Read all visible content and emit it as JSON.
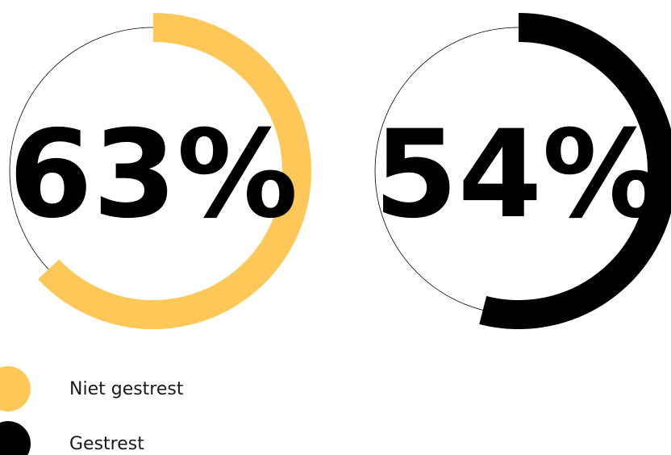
{
  "chart_data": {
    "type": "pie",
    "charts": [
      {
        "value": 63,
        "label": "63%",
        "color": "#FDC858",
        "series": "Niet gestrest"
      },
      {
        "value": 54,
        "label": "54%",
        "color": "#000000",
        "series": "Gestrest"
      }
    ],
    "legend": [
      {
        "label": "Niet gestrest",
        "color": "#FDC858"
      },
      {
        "label": "Gestrest",
        "color": "#000000"
      }
    ],
    "legend_position": "bottom-left"
  }
}
